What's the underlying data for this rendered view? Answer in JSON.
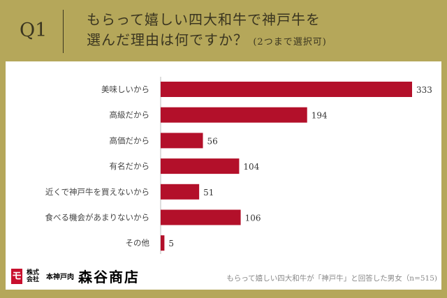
{
  "header": {
    "q": "Q1",
    "title_line1": "もらって嬉しい四大和牛で神戸牛を",
    "title_line2": "選んだ理由は何ですか？",
    "title_note": "(2つまで選択可)"
  },
  "logo": {
    "small": "株式会社",
    "sub": "本神戸肉",
    "name": "森谷商店",
    "mark": "モ"
  },
  "footnote": "もらって嬉しい四大和牛が「神戸牛」と回答した男女（n=515)",
  "chart_data": {
    "type": "bar",
    "orientation": "horizontal",
    "categories": [
      "美味しいから",
      "高級だから",
      "高価だから",
      "有名だから",
      "近くで神戸牛を買えないから",
      "食べる機会があまりないから",
      "その他"
    ],
    "values": [
      333,
      194,
      56,
      104,
      51,
      106,
      5
    ],
    "color": "#b3102a",
    "xlim": [
      0,
      333
    ]
  }
}
